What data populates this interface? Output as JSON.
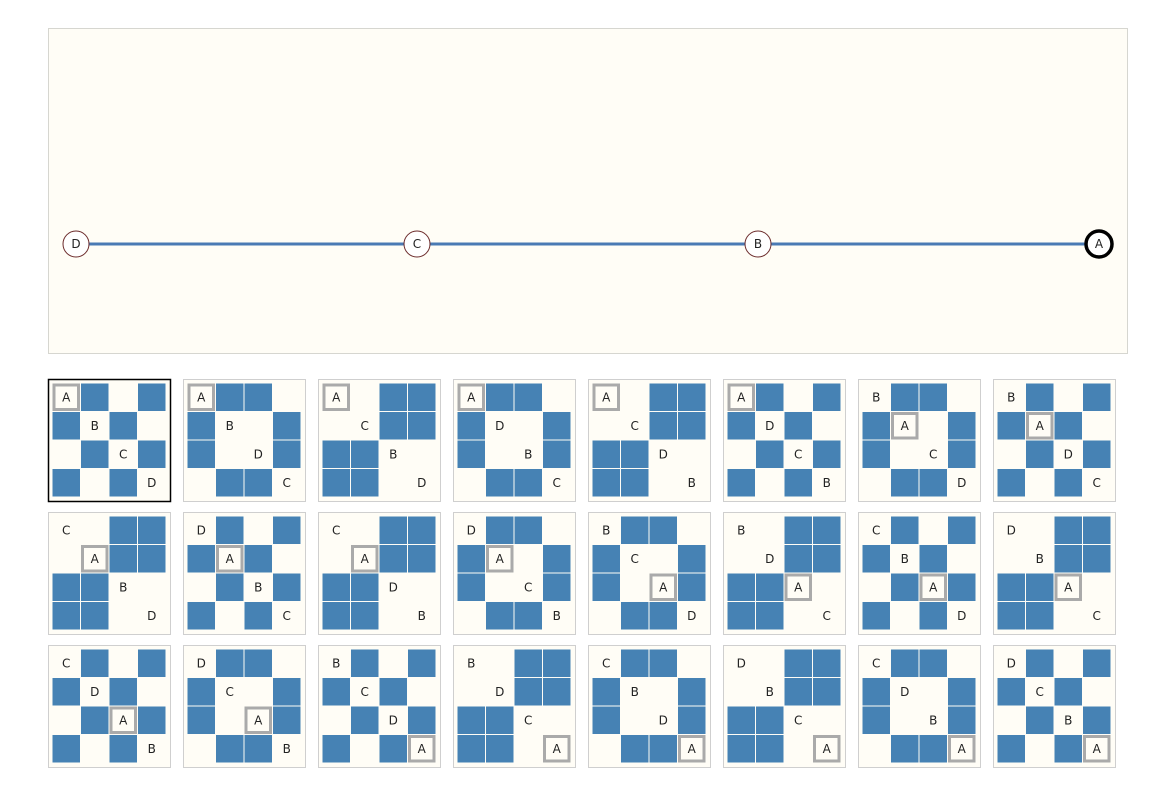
{
  "path": {
    "nodes": [
      "D",
      "C",
      "B",
      "A"
    ],
    "current": 3
  },
  "selected_thumbnail": 0,
  "thumbnails": [
    {
      "labels": [
        "A",
        "B",
        "C",
        "D"
      ],
      "highlight": 0,
      "filled": [
        [
          1,
          3
        ],
        [
          0,
          2
        ],
        [
          1,
          3
        ],
        [
          0,
          2
        ]
      ]
    },
    {
      "labels": [
        "A",
        "B",
        "D",
        "C"
      ],
      "highlight": 0,
      "filled": [
        [
          1,
          2
        ],
        [
          0,
          3
        ],
        [
          0,
          3
        ],
        [
          1,
          2
        ]
      ]
    },
    {
      "labels": [
        "A",
        "C",
        "B",
        "D"
      ],
      "highlight": 0,
      "filled": [
        [
          2,
          3
        ],
        [
          2,
          3
        ],
        [
          0,
          1
        ],
        [
          0,
          1
        ]
      ]
    },
    {
      "labels": [
        "A",
        "D",
        "B",
        "C"
      ],
      "highlight": 0,
      "filled": [
        [
          1,
          2
        ],
        [
          0,
          3
        ],
        [
          0,
          3
        ],
        [
          1,
          2
        ]
      ]
    },
    {
      "labels": [
        "A",
        "C",
        "D",
        "B"
      ],
      "highlight": 0,
      "filled": [
        [
          2,
          3
        ],
        [
          2,
          3
        ],
        [
          0,
          1
        ],
        [
          0,
          1
        ]
      ]
    },
    {
      "labels": [
        "A",
        "D",
        "C",
        "B"
      ],
      "highlight": 0,
      "filled": [
        [
          1,
          3
        ],
        [
          0,
          2
        ],
        [
          1,
          3
        ],
        [
          0,
          2
        ]
      ]
    },
    {
      "labels": [
        "B",
        "A",
        "C",
        "D"
      ],
      "highlight": 1,
      "filled": [
        [
          1,
          2
        ],
        [
          0,
          3
        ],
        [
          0,
          3
        ],
        [
          1,
          2
        ]
      ]
    },
    {
      "labels": [
        "B",
        "A",
        "D",
        "C"
      ],
      "highlight": 1,
      "filled": [
        [
          1,
          3
        ],
        [
          0,
          2
        ],
        [
          1,
          3
        ],
        [
          0,
          2
        ]
      ]
    },
    {
      "labels": [
        "C",
        "A",
        "B",
        "D"
      ],
      "highlight": 1,
      "filled": [
        [
          2,
          3
        ],
        [
          2,
          3
        ],
        [
          0,
          1
        ],
        [
          0,
          1
        ]
      ]
    },
    {
      "labels": [
        "D",
        "A",
        "B",
        "C"
      ],
      "highlight": 1,
      "filled": [
        [
          1,
          3
        ],
        [
          0,
          2
        ],
        [
          1,
          3
        ],
        [
          0,
          2
        ]
      ]
    },
    {
      "labels": [
        "C",
        "A",
        "D",
        "B"
      ],
      "highlight": 1,
      "filled": [
        [
          2,
          3
        ],
        [
          2,
          3
        ],
        [
          0,
          1
        ],
        [
          0,
          1
        ]
      ]
    },
    {
      "labels": [
        "D",
        "A",
        "C",
        "B"
      ],
      "highlight": 1,
      "filled": [
        [
          1,
          2
        ],
        [
          0,
          3
        ],
        [
          0,
          3
        ],
        [
          1,
          2
        ]
      ]
    },
    {
      "labels": [
        "B",
        "C",
        "A",
        "D"
      ],
      "highlight": 2,
      "filled": [
        [
          1,
          2
        ],
        [
          0,
          3
        ],
        [
          0,
          3
        ],
        [
          1,
          2
        ]
      ]
    },
    {
      "labels": [
        "B",
        "D",
        "A",
        "C"
      ],
      "highlight": 2,
      "filled": [
        [
          2,
          3
        ],
        [
          2,
          3
        ],
        [
          0,
          1
        ],
        [
          0,
          1
        ]
      ]
    },
    {
      "labels": [
        "C",
        "B",
        "A",
        "D"
      ],
      "highlight": 2,
      "filled": [
        [
          1,
          3
        ],
        [
          0,
          2
        ],
        [
          1,
          3
        ],
        [
          0,
          2
        ]
      ]
    },
    {
      "labels": [
        "D",
        "B",
        "A",
        "C"
      ],
      "highlight": 2,
      "filled": [
        [
          2,
          3
        ],
        [
          2,
          3
        ],
        [
          0,
          1
        ],
        [
          0,
          1
        ]
      ]
    },
    {
      "labels": [
        "C",
        "D",
        "A",
        "B"
      ],
      "highlight": 2,
      "filled": [
        [
          1,
          3
        ],
        [
          0,
          2
        ],
        [
          1,
          3
        ],
        [
          0,
          2
        ]
      ]
    },
    {
      "labels": [
        "D",
        "C",
        "A",
        "B"
      ],
      "highlight": 2,
      "filled": [
        [
          1,
          2
        ],
        [
          0,
          3
        ],
        [
          0,
          3
        ],
        [
          1,
          2
        ]
      ]
    },
    {
      "labels": [
        "B",
        "C",
        "D",
        "A"
      ],
      "highlight": 3,
      "filled": [
        [
          1,
          3
        ],
        [
          0,
          2
        ],
        [
          1,
          3
        ],
        [
          0,
          2
        ]
      ]
    },
    {
      "labels": [
        "B",
        "D",
        "C",
        "A"
      ],
      "highlight": 3,
      "filled": [
        [
          2,
          3
        ],
        [
          2,
          3
        ],
        [
          0,
          1
        ],
        [
          0,
          1
        ]
      ]
    },
    {
      "labels": [
        "C",
        "B",
        "D",
        "A"
      ],
      "highlight": 3,
      "filled": [
        [
          1,
          2
        ],
        [
          0,
          3
        ],
        [
          0,
          3
        ],
        [
          1,
          2
        ]
      ]
    },
    {
      "labels": [
        "D",
        "B",
        "C",
        "A"
      ],
      "highlight": 3,
      "filled": [
        [
          2,
          3
        ],
        [
          2,
          3
        ],
        [
          0,
          1
        ],
        [
          0,
          1
        ]
      ]
    },
    {
      "labels": [
        "C",
        "D",
        "B",
        "A"
      ],
      "highlight": 3,
      "filled": [
        [
          1,
          2
        ],
        [
          0,
          3
        ],
        [
          0,
          3
        ],
        [
          1,
          2
        ]
      ]
    },
    {
      "labels": [
        "D",
        "C",
        "B",
        "A"
      ],
      "highlight": 3,
      "filled": [
        [
          1,
          3
        ],
        [
          0,
          2
        ],
        [
          1,
          3
        ],
        [
          0,
          2
        ]
      ]
    }
  ]
}
